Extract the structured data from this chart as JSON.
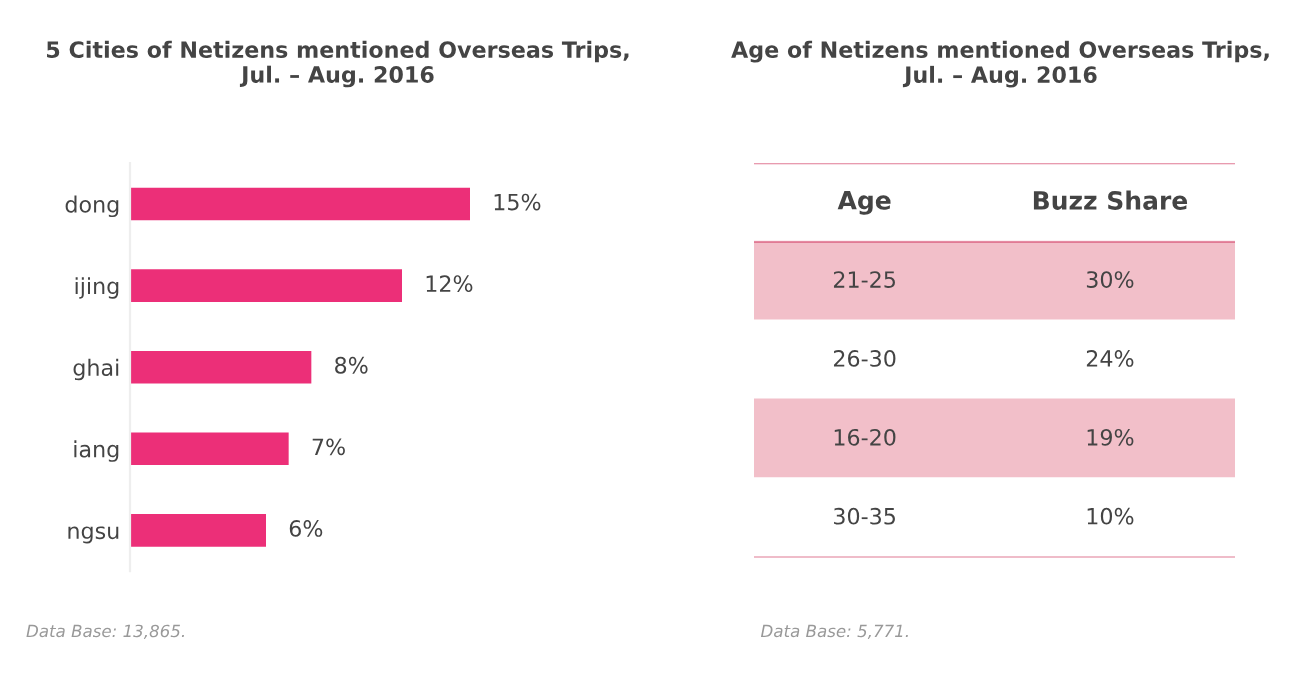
{
  "chart_data": [
    {
      "type": "bar",
      "orientation": "horizontal",
      "title": "5 Cities of Netizens mentioned Overseas Trips,\nJul. – Aug. 2016",
      "categories": [
        "dong",
        "ijing",
        "ghai",
        "iang",
        "ngsu"
      ],
      "values": [
        15,
        12,
        8,
        7,
        6
      ],
      "color": "#ec2f78",
      "value_labels": [
        "15%",
        "12%",
        "8%",
        "7%",
        "6%"
      ],
      "annotations": [
        "Data Base: 13,865."
      ]
    },
    {
      "type": "other",
      "title": "Age of Netizens mentioned Overseas Trips,\nJul. – Aug. 2016",
      "xlabel": "Age",
      "ylabel": "Buzz Share",
      "categories": [
        "21-25",
        "26-30",
        "16-20",
        "30-35"
      ],
      "value_labels": [
        "30%",
        "24%",
        "19%",
        "10%"
      ],
      "colors": [
        "#f2bfc9",
        "#ffffff",
        "#f2bfc9",
        "#ffffff"
      ],
      "annotations": [
        "Data Base: 5,771."
      ]
    }
  ]
}
